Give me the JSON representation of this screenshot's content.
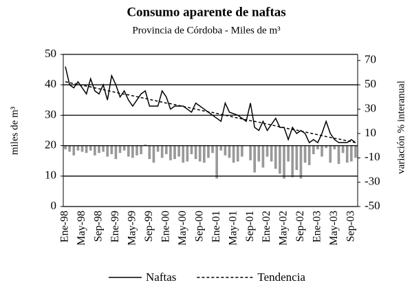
{
  "chart_data": {
    "type": "combo",
    "title": "Consumo aparente de naftas",
    "subtitle": "Provincia de Córdoba - Miles de m³",
    "y_label": "miles de m³",
    "y2_label": "variación % interanual",
    "categories": [
      "Ene-98",
      null,
      null,
      null,
      "May-98",
      null,
      null,
      null,
      "Sep-98",
      null,
      null,
      null,
      "Ene-99",
      null,
      null,
      null,
      "May-99",
      null,
      null,
      null,
      "Sep-99",
      null,
      null,
      null,
      "Ene-00",
      null,
      null,
      null,
      "May-00",
      null,
      null,
      null,
      "Sep-00",
      null,
      null,
      null,
      "Ene-01",
      null,
      null,
      null,
      "May-01",
      null,
      null,
      null,
      "Sep-01",
      null,
      null,
      null,
      "Ene-02",
      null,
      null,
      null,
      "May-02",
      null,
      null,
      null,
      "Sep-02",
      null,
      null,
      null,
      "Ene-03",
      null,
      null,
      null,
      "May-03",
      null,
      null,
      null,
      "Sep-03",
      null
    ],
    "ylim": [
      0,
      50
    ],
    "yticks": [
      0,
      10,
      20,
      30,
      40,
      50
    ],
    "y2lim": [
      -50,
      75
    ],
    "y2ticks": [
      -50,
      -30,
      -10,
      10,
      30,
      50,
      70
    ],
    "grid": true,
    "legend": "bottom",
    "series": [
      {
        "type": "bar",
        "axis": "y2",
        "color": "#999999",
        "values": [
          -3,
          -5,
          -8,
          -4,
          -5,
          -6,
          -4,
          -8,
          -6,
          -5,
          -9,
          -7,
          -11,
          -6,
          -4,
          -9,
          -10,
          -8,
          -7,
          1,
          -11,
          -14,
          -5,
          -10,
          -7,
          -12,
          -11,
          -9,
          -14,
          -13,
          -7,
          -11,
          -13,
          -14,
          -10,
          -6,
          -27,
          -4,
          -8,
          -10,
          -14,
          -13,
          -9,
          0,
          -12,
          -22,
          -13,
          -18,
          -9,
          -13,
          -19,
          -23,
          -27,
          -13,
          -26,
          -20,
          -27,
          -14,
          -16,
          -7,
          -3,
          -9,
          -2,
          -14,
          -3,
          -15,
          -6,
          -14,
          -13,
          -10
        ]
      },
      {
        "type": "line",
        "name": "Naftas",
        "color": "#000000",
        "dash": false,
        "values": [
          46,
          40,
          39,
          41,
          39,
          37,
          42,
          38,
          37,
          40,
          35,
          43,
          40,
          36,
          38,
          35,
          33,
          35,
          37,
          38,
          33,
          33,
          33,
          38,
          36,
          32,
          33,
          33,
          33,
          32,
          31,
          34,
          33,
          32,
          31,
          30,
          29,
          28,
          34,
          31,
          30.5,
          30,
          29,
          28,
          34,
          26,
          25,
          28,
          25,
          27,
          29,
          26,
          26,
          22,
          26,
          24,
          25,
          24,
          21,
          22,
          21,
          24,
          28,
          24,
          22,
          21,
          21,
          21,
          22,
          21
        ]
      },
      {
        "type": "line",
        "name": "Tendencia",
        "color": "#000000",
        "dash": true,
        "values": [
          41.0,
          40.7,
          40.4,
          40.1,
          39.8,
          39.6,
          39.3,
          39.0,
          38.7,
          38.4,
          38.1,
          37.8,
          37.5,
          37.2,
          36.9,
          36.7,
          36.4,
          36.1,
          35.8,
          35.5,
          35.2,
          34.9,
          34.6,
          34.3,
          34.0,
          33.8,
          33.5,
          33.2,
          32.9,
          32.6,
          32.3,
          32.0,
          31.7,
          31.4,
          31.1,
          30.9,
          30.6,
          30.3,
          30.0,
          29.7,
          29.4,
          29.1,
          28.8,
          28.5,
          28.2,
          28.0,
          27.7,
          27.4,
          27.1,
          26.8,
          26.5,
          26.2,
          25.9,
          25.6,
          25.3,
          25.1,
          24.8,
          24.5,
          24.2,
          23.9,
          23.6,
          23.3,
          23.0,
          22.7,
          22.4,
          22.2,
          21.9,
          21.6,
          21.3,
          21.0
        ]
      }
    ]
  }
}
